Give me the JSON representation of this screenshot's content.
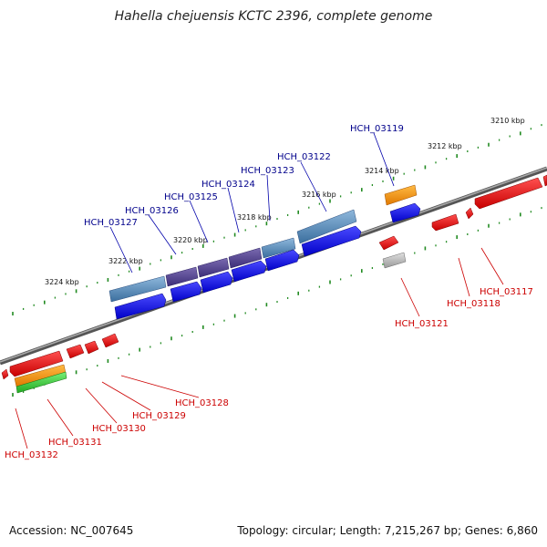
{
  "title": "Hahella chejuensis KCTC 2396, complete genome",
  "footer": {
    "accession": "Accession: NC_007645",
    "summary": "Topology: circular; Length: 7,215,267 bp; Genes: 6,860"
  },
  "kbp_ticks": [
    "3210 kbp",
    "3212 kbp",
    "3214 kbp",
    "3216 kbp",
    "3218 kbp",
    "3220 kbp",
    "3222 kbp",
    "3224 kbp"
  ],
  "top_genes": [
    "HCH_03119",
    "HCH_03122",
    "HCH_03123",
    "HCH_03124",
    "HCH_03125",
    "HCH_03126",
    "HCH_03127"
  ],
  "bottom_genes": [
    "HCH_03117",
    "HCH_03118",
    "HCH_03121",
    "HCH_03128",
    "HCH_03129",
    "HCH_03130",
    "HCH_03131",
    "HCH_03132"
  ],
  "colors": {
    "forward_cds": "#1a1aff",
    "reverse_cds": "#ee1111",
    "forward_region": "#4a82b4",
    "orange_feature": "#ff9900",
    "green_feature": "#33cc33",
    "gray_feature": "#aaaaaa",
    "backbone": "#777777",
    "tick": "#228b22"
  }
}
